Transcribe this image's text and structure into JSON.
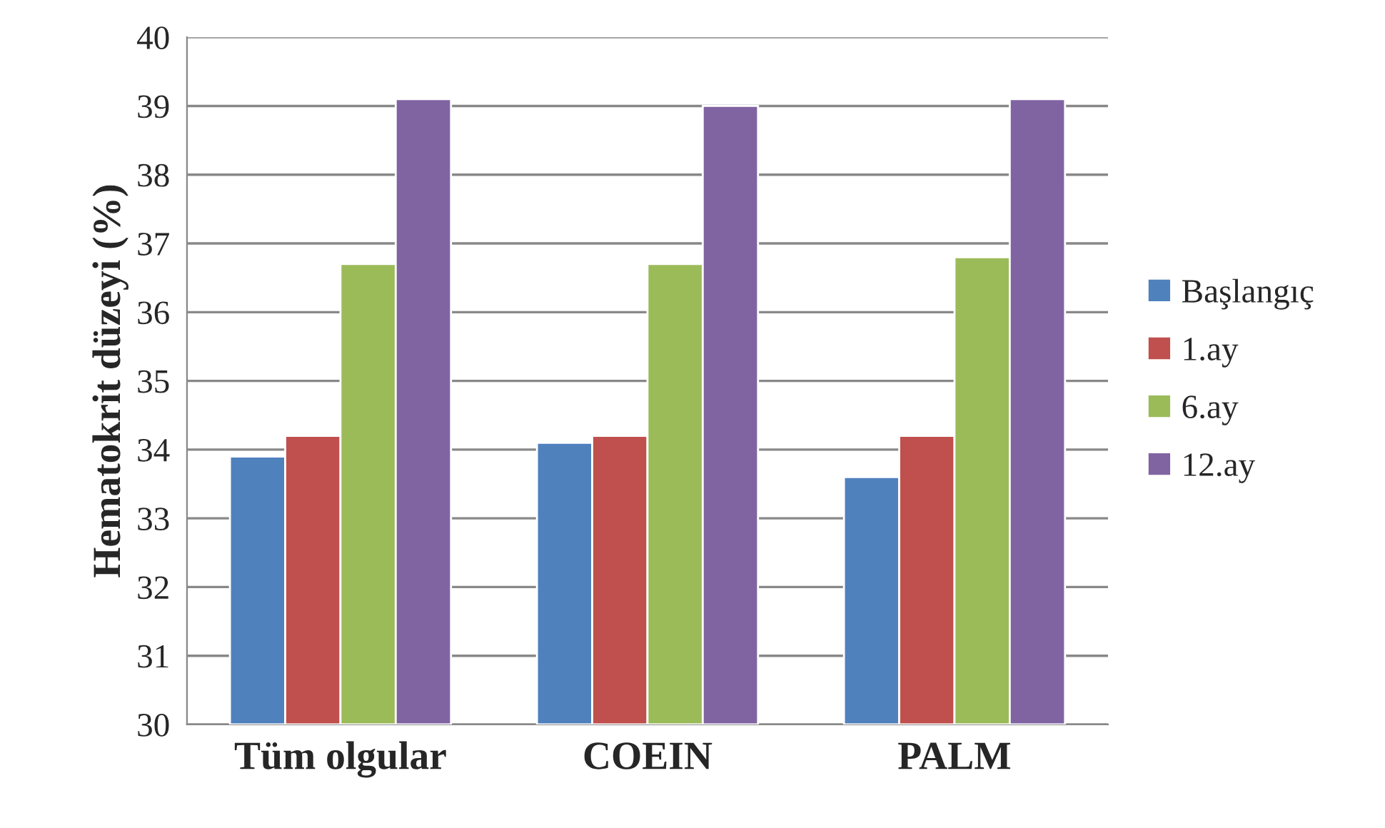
{
  "chart_data": {
    "type": "bar",
    "ylabel": "Hematokrit düzeyi (%)",
    "categories": [
      "Tüm olgular",
      "COEIN",
      "PALM"
    ],
    "series": [
      {
        "name": "Başlangıç",
        "color": "#4f81bd",
        "values": [
          33.9,
          34.1,
          33.6
        ]
      },
      {
        "name": "1.ay",
        "color": "#c0504d",
        "values": [
          34.2,
          34.2,
          34.2
        ]
      },
      {
        "name": "6.ay",
        "color": "#9bbb59",
        "values": [
          36.7,
          36.7,
          36.8
        ]
      },
      {
        "name": "12.ay",
        "color": "#8064a2",
        "values": [
          39.1,
          39.0,
          39.1
        ]
      }
    ],
    "ylim": [
      30,
      40
    ],
    "yticks": [
      30,
      31,
      32,
      33,
      34,
      35,
      36,
      37,
      38,
      39,
      40
    ],
    "grid": "y",
    "legend": "right"
  }
}
